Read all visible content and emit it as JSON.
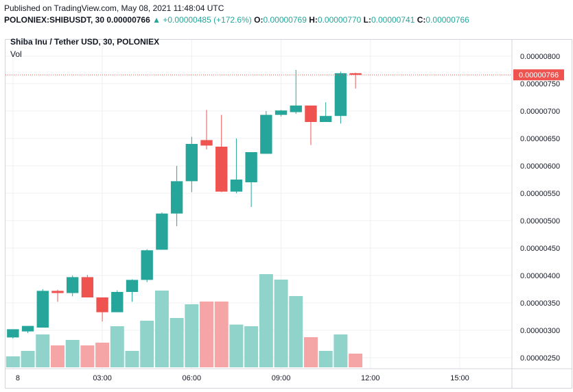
{
  "header": {
    "published": "Published on TradingView.com, May 08, 2021 11:48:04 UTC",
    "symbol": "POLONIEX:SHIBUSDT, 30",
    "last": "0.00000766",
    "change": "▲ +0.00000485 (+172.6%)",
    "o_label": "O:",
    "o_value": "0.00000769",
    "h_label": "H:",
    "h_value": "0.00000770",
    "l_label": "L:",
    "l_value": "0.00000741",
    "c_label": "C:",
    "c_value": "0.00000766"
  },
  "legend": {
    "title": "Shiba Inu / Tether USD, 30, POLONIEX",
    "vol": "Vol"
  },
  "colors": {
    "up": "#26a69a",
    "down": "#ef5350",
    "vol_up": "#8fd3cb",
    "vol_down": "#f5a5a5",
    "grid": "#eef0f3"
  },
  "chart_data": {
    "type": "candlestick",
    "y_ticks": [
      "0.00000800",
      "0.00000750",
      "0.00000700",
      "0.00000650",
      "0.00000600",
      "0.00000550",
      "0.00000500",
      "0.00000450",
      "0.00000400",
      "0.00000350",
      "0.00000300",
      "0.00000250"
    ],
    "y_tick_values": [
      8.0,
      7.5,
      7.0,
      6.5,
      6.0,
      5.5,
      5.0,
      4.5,
      4.0,
      3.5,
      3.0,
      2.5
    ],
    "ylim": [
      2.3,
      8.3
    ],
    "x_ticks": [
      "8",
      "03:00",
      "06:00",
      "09:00",
      "12:00",
      "15:00"
    ],
    "x_tick_positions": [
      0,
      6,
      12,
      18,
      24,
      30
    ],
    "x_range": [
      -0.5,
      33.5
    ],
    "last_price_label": "0.00000766",
    "last_price": 7.66,
    "candles": [
      {
        "i": 0,
        "o": 2.87,
        "h": 3.02,
        "l": 2.85,
        "c": 3.02,
        "vol": 0.02
      },
      {
        "i": 1,
        "o": 2.98,
        "h": 3.08,
        "l": 2.95,
        "c": 3.08,
        "vol": 0.03
      },
      {
        "i": 2,
        "o": 3.05,
        "h": 3.75,
        "l": 3.05,
        "c": 3.72,
        "vol": 0.06
      },
      {
        "i": 3,
        "o": 3.72,
        "h": 3.74,
        "l": 3.52,
        "c": 3.68,
        "vol": 0.04
      },
      {
        "i": 4,
        "o": 3.68,
        "h": 4.0,
        "l": 3.62,
        "c": 3.97,
        "vol": 0.05
      },
      {
        "i": 5,
        "o": 3.97,
        "h": 4.01,
        "l": 3.6,
        "c": 3.6,
        "vol": 0.04
      },
      {
        "i": 6,
        "o": 3.6,
        "h": 3.6,
        "l": 3.16,
        "c": 3.33,
        "vol": 0.045
      },
      {
        "i": 7,
        "o": 3.33,
        "h": 3.73,
        "l": 3.33,
        "c": 3.7,
        "vol": 0.075
      },
      {
        "i": 8,
        "o": 3.7,
        "h": 3.93,
        "l": 3.52,
        "c": 3.92,
        "vol": 0.03
      },
      {
        "i": 9,
        "o": 3.92,
        "h": 4.48,
        "l": 3.88,
        "c": 4.46,
        "vol": 0.085
      },
      {
        "i": 10,
        "o": 4.47,
        "h": 5.15,
        "l": 4.47,
        "c": 5.13,
        "vol": 0.14
      },
      {
        "i": 11,
        "o": 5.13,
        "h": 6.0,
        "l": 4.9,
        "c": 5.72,
        "vol": 0.09
      },
      {
        "i": 12,
        "o": 5.72,
        "h": 6.53,
        "l": 5.52,
        "c": 6.4,
        "vol": 0.115
      },
      {
        "i": 13,
        "o": 6.47,
        "h": 7.02,
        "l": 6.3,
        "c": 6.37,
        "vol": 0.12
      },
      {
        "i": 14,
        "o": 6.35,
        "h": 6.93,
        "l": 5.52,
        "c": 5.53,
        "vol": 0.12
      },
      {
        "i": 15,
        "o": 5.53,
        "h": 6.5,
        "l": 5.5,
        "c": 5.75,
        "vol": 0.078
      },
      {
        "i": 16,
        "o": 5.7,
        "h": 6.25,
        "l": 5.25,
        "c": 6.25,
        "vol": 0.075
      },
      {
        "i": 17,
        "o": 6.22,
        "h": 7.0,
        "l": 6.22,
        "c": 6.93,
        "vol": 0.17
      },
      {
        "i": 18,
        "o": 6.93,
        "h": 7.02,
        "l": 6.9,
        "c": 7.01,
        "vol": 0.16
      },
      {
        "i": 19,
        "o": 6.98,
        "h": 7.75,
        "l": 6.95,
        "c": 7.1,
        "vol": 0.13
      },
      {
        "i": 20,
        "o": 7.1,
        "h": 7.1,
        "l": 6.38,
        "c": 6.8,
        "vol": 0.055
      },
      {
        "i": 21,
        "o": 6.8,
        "h": 7.16,
        "l": 6.8,
        "c": 6.91,
        "vol": 0.03
      },
      {
        "i": 22,
        "o": 6.91,
        "h": 7.72,
        "l": 6.77,
        "c": 7.69,
        "vol": 0.06
      },
      {
        "i": 23,
        "o": 7.69,
        "h": 7.7,
        "l": 7.41,
        "c": 7.66,
        "vol": 0.025
      }
    ]
  }
}
